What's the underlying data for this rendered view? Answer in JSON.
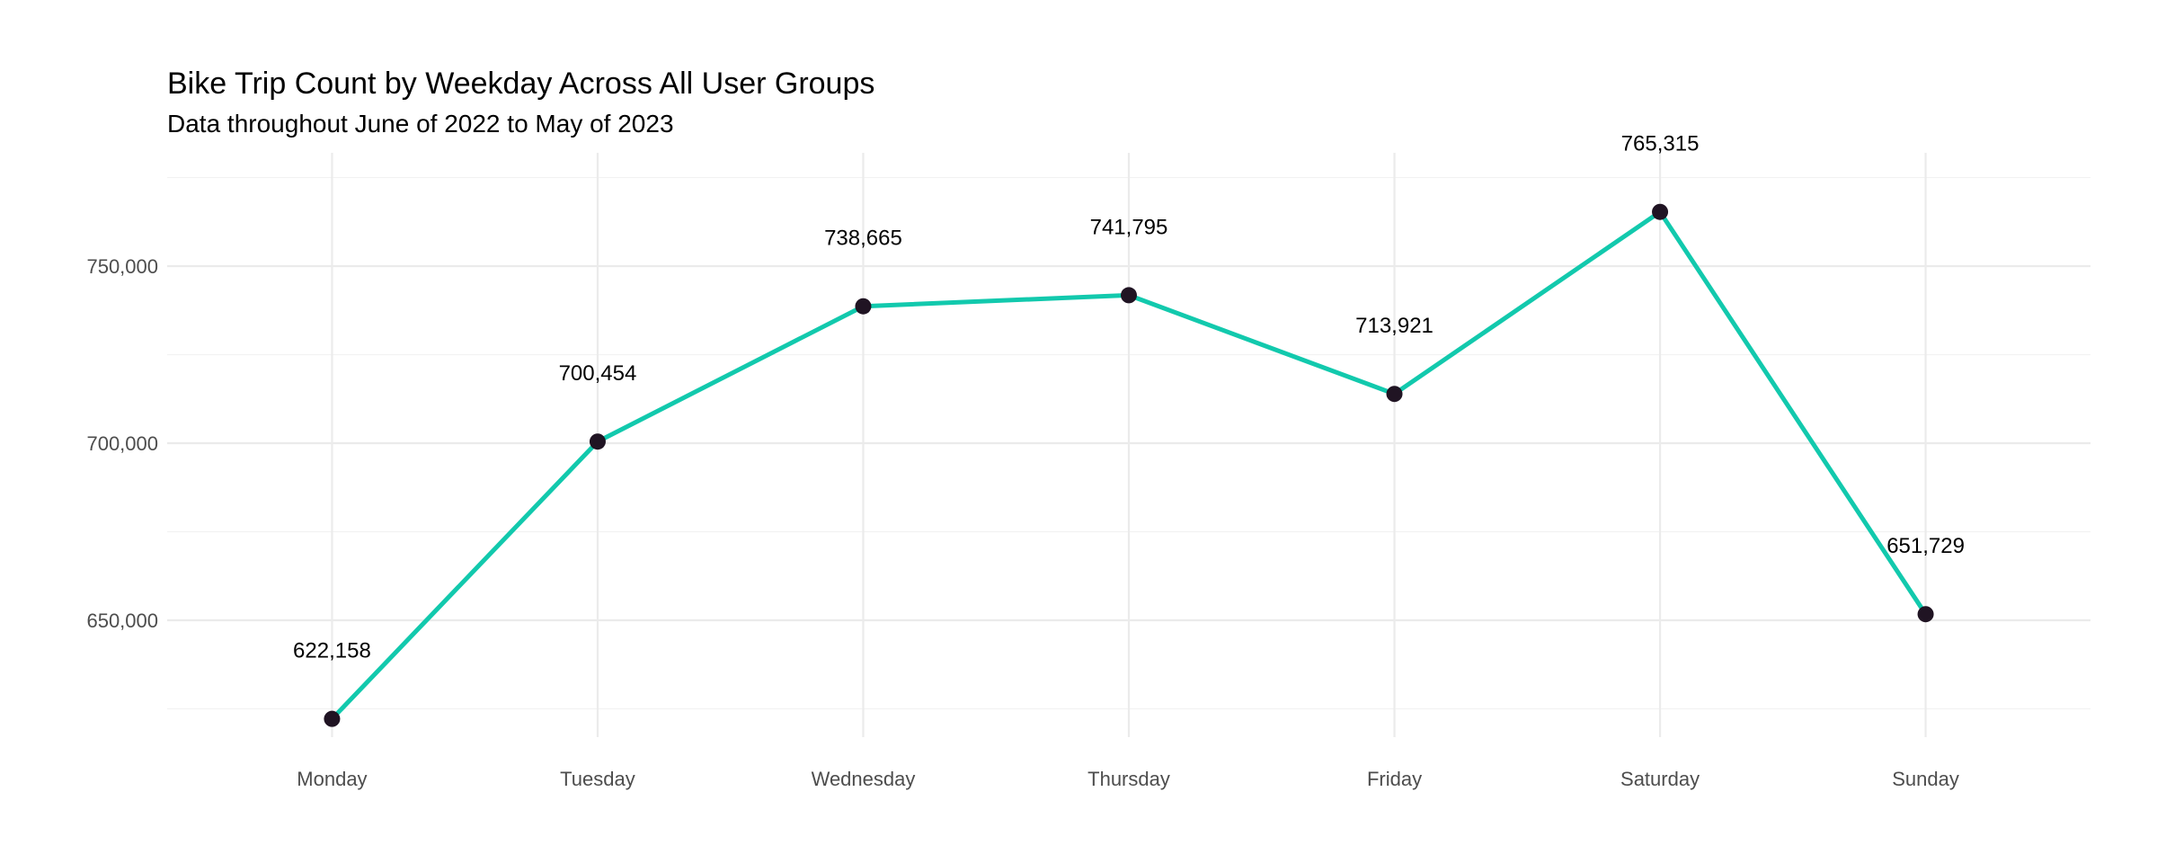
{
  "chart_data": {
    "type": "line",
    "title": "Bike Trip Count by Weekday Across All User Groups",
    "subtitle": "Data throughout June of 2022 to May of 2023",
    "xlabel": "",
    "ylabel": "",
    "categories": [
      "Monday",
      "Tuesday",
      "Wednesday",
      "Thursday",
      "Friday",
      "Saturday",
      "Sunday"
    ],
    "series": [
      {
        "values": [
          622158,
          700454,
          738665,
          741795,
          713921,
          765315,
          651729
        ]
      }
    ],
    "data_labels": [
      "622,158",
      "700,454",
      "738,665",
      "741,795",
      "713,921",
      "765,315",
      "651,729"
    ],
    "y_ticks": [
      650000,
      700000,
      750000
    ],
    "y_tick_labels": [
      "650,000",
      "700,000",
      "750,000"
    ],
    "ylim": [
      617000,
      782000
    ],
    "grid": true,
    "legend": "none",
    "colors": {
      "line": "#12c9ad",
      "points": "#201423",
      "grid": "#ebebeb",
      "tick_text": "#4d4d4d"
    }
  }
}
